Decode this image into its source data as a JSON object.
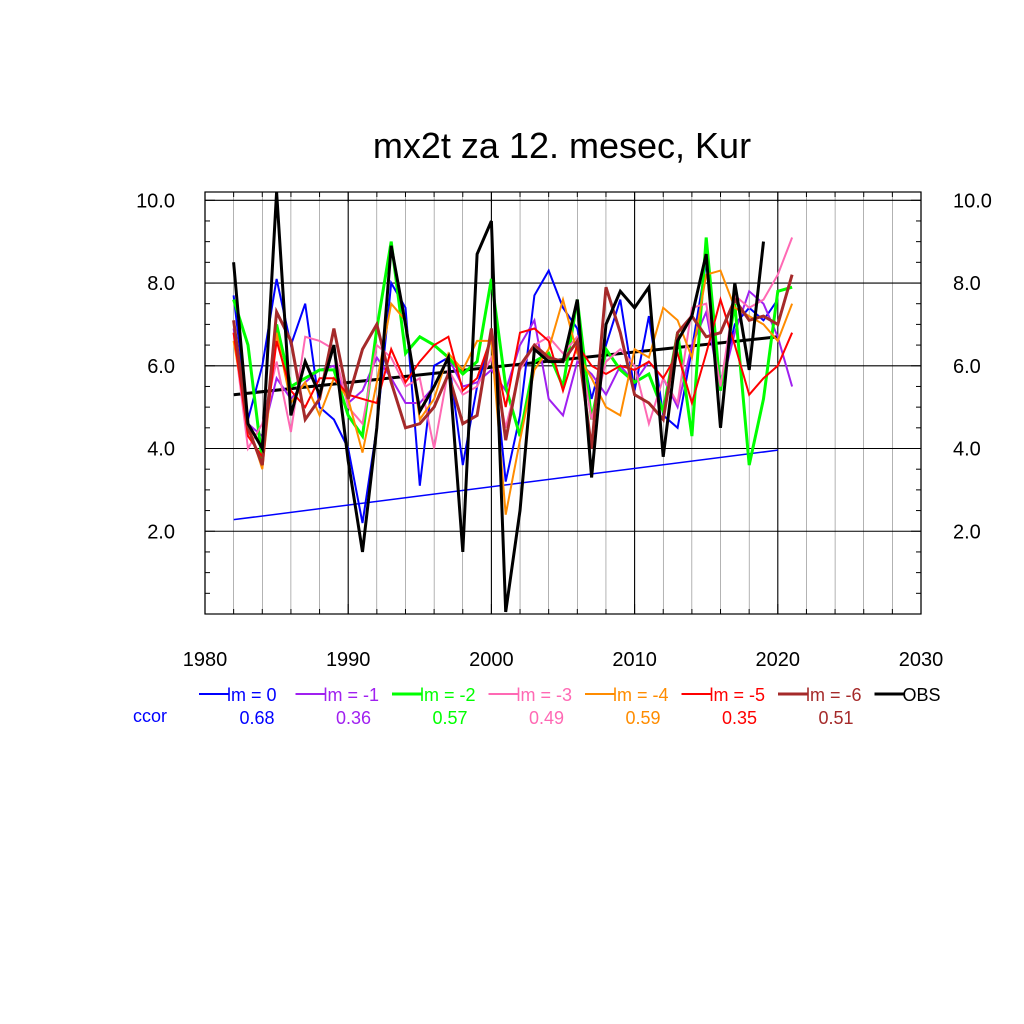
{
  "chart_data": {
    "type": "line",
    "title": "mx2t za 12. mesec, Kur",
    "xlabel": "",
    "ylabel": "",
    "xlim": [
      1980,
      2030
    ],
    "ylim": [
      0,
      10.2
    ],
    "x_ticks": [
      1980,
      1990,
      2000,
      2010,
      2020,
      2030
    ],
    "x_tick_labels": [
      "1980",
      "1990",
      "2000",
      "2010",
      "2020",
      "2030"
    ],
    "y_ticks": [
      2,
      4,
      6,
      8,
      10
    ],
    "y_tick_labels": [
      "2.0",
      "4.0",
      "6.0",
      "8.0",
      "10.0"
    ],
    "grid": true,
    "ccor_label": "ccor",
    "ccor_color": "#0000ff",
    "series": [
      {
        "name": "lm = 0",
        "color": "#0000ff",
        "width": 2,
        "ccor": "0.68",
        "x": [
          1982,
          1983,
          1984,
          1985,
          1986,
          1987,
          1988,
          1989,
          1990,
          1991,
          1992,
          1993,
          1994,
          1995,
          1996,
          1997,
          1998,
          1999,
          2000,
          2001,
          2002,
          2003,
          2004,
          2005,
          2006,
          2007,
          2008,
          2009,
          2010,
          2011,
          2012,
          2013,
          2014,
          2015,
          2016,
          2017,
          2018,
          2019,
          2020
        ],
        "y": [
          7.7,
          4.7,
          6.0,
          8.1,
          6.5,
          7.5,
          5.0,
          4.7,
          4.0,
          2.2,
          4.5,
          8.0,
          7.4,
          3.1,
          6.0,
          6.2,
          3.6,
          5.5,
          6.7,
          3.2,
          4.8,
          7.7,
          8.3,
          7.4,
          6.9,
          5.2,
          6.5,
          7.6,
          5.4,
          7.2,
          4.8,
          4.5,
          6.4,
          8.5,
          5.6,
          7.0,
          7.4,
          7.1,
          7.6
        ]
      },
      {
        "name": "lm = -1",
        "color": "#a020f0",
        "width": 2,
        "ccor": "0.36",
        "x": [
          1982,
          1983,
          1984,
          1985,
          1986,
          1987,
          1988,
          1989,
          1990,
          1991,
          1992,
          1993,
          1994,
          1995,
          1996,
          1997,
          1998,
          1999,
          2000,
          2001,
          2002,
          2003,
          2004,
          2005,
          2006,
          2007,
          2008,
          2009,
          2010,
          2011,
          2012,
          2013,
          2014,
          2015,
          2016,
          2017,
          2018,
          2019,
          2020,
          2021
        ],
        "y": [
          6.9,
          4.6,
          4.3,
          5.7,
          5.2,
          5.6,
          5.9,
          6.0,
          5.1,
          5.4,
          6.2,
          5.7,
          5.1,
          5.1,
          5.5,
          6.2,
          5.5,
          5.6,
          5.9,
          5.4,
          6.5,
          7.1,
          5.2,
          4.8,
          6.1,
          5.8,
          5.3,
          6.0,
          5.6,
          6.1,
          5.7,
          5.0,
          6.5,
          7.3,
          5.4,
          6.8,
          7.8,
          7.5,
          6.7,
          5.5
        ]
      },
      {
        "name": "lm = -2",
        "color": "#00ff00",
        "width": 3,
        "ccor": "0.57",
        "x": [
          1982,
          1983,
          1984,
          1985,
          1986,
          1987,
          1988,
          1989,
          1990,
          1991,
          1992,
          1993,
          1994,
          1995,
          1996,
          1997,
          1998,
          1999,
          2000,
          2001,
          2002,
          2003,
          2004,
          2005,
          2006,
          2007,
          2008,
          2009,
          2010,
          2011,
          2012,
          2013,
          2014,
          2015,
          2016,
          2017,
          2018,
          2019,
          2020,
          2021
        ],
        "y": [
          7.6,
          6.5,
          3.7,
          7.0,
          5.5,
          5.7,
          5.9,
          5.9,
          4.8,
          4.3,
          6.9,
          9.0,
          6.3,
          6.7,
          6.5,
          6.2,
          5.8,
          6.1,
          8.1,
          5.5,
          4.3,
          6.1,
          6.3,
          5.5,
          7.6,
          4.7,
          6.4,
          5.9,
          5.6,
          5.8,
          4.9,
          6.8,
          4.3,
          9.1,
          5.4,
          7.5,
          3.6,
          5.2,
          7.8,
          7.9
        ]
      },
      {
        "name": "lm = -3",
        "color": "#ff69b4",
        "width": 2,
        "ccor": "0.49",
        "x": [
          1982,
          1983,
          1984,
          1985,
          1986,
          1987,
          1988,
          1989,
          1990,
          1991,
          1992,
          1993,
          1994,
          1995,
          1996,
          1997,
          1998,
          1999,
          2000,
          2001,
          2002,
          2003,
          2004,
          2005,
          2006,
          2007,
          2008,
          2009,
          2010,
          2011,
          2012,
          2013,
          2014,
          2015,
          2016,
          2017,
          2018,
          2019,
          2020,
          2021
        ],
        "y": [
          6.8,
          4.0,
          4.6,
          6.1,
          4.4,
          6.7,
          6.6,
          6.4,
          5.0,
          4.6,
          6.5,
          6.2,
          5.5,
          5.7,
          4.0,
          5.9,
          5.3,
          5.5,
          6.2,
          4.5,
          5.9,
          6.5,
          6.7,
          6.3,
          6.7,
          4.7,
          6.1,
          6.4,
          6.0,
          4.6,
          5.7,
          5.1,
          7.4,
          7.5,
          5.5,
          7.7,
          7.4,
          7.6,
          8.2,
          9.1
        ]
      },
      {
        "name": "lm = -4",
        "color": "#ff8c00",
        "width": 2,
        "ccor": "0.59",
        "x": [
          1982,
          1983,
          1984,
          1985,
          1986,
          1987,
          1988,
          1989,
          1990,
          1991,
          1992,
          1993,
          1994,
          1995,
          1996,
          1997,
          1998,
          1999,
          2000,
          2001,
          2002,
          2003,
          2004,
          2005,
          2006,
          2007,
          2008,
          2009,
          2010,
          2011,
          2012,
          2013,
          2014,
          2015,
          2016,
          2017,
          2018,
          2019,
          2020,
          2021
        ],
        "y": [
          6.6,
          4.6,
          3.5,
          6.8,
          5.1,
          5.6,
          4.8,
          5.7,
          5.2,
          3.9,
          5.6,
          7.5,
          7.1,
          4.7,
          5.2,
          6.3,
          5.9,
          6.6,
          6.6,
          2.4,
          4.2,
          5.9,
          6.4,
          7.6,
          6.3,
          5.7,
          5.0,
          4.8,
          6.4,
          6.2,
          7.4,
          7.1,
          6.2,
          8.2,
          8.3,
          7.4,
          7.2,
          7.0,
          6.6,
          7.5
        ]
      },
      {
        "name": "lm = -5",
        "color": "#ff0000",
        "width": 2,
        "ccor": "0.35",
        "x": [
          1982,
          1983,
          1984,
          1985,
          1986,
          1987,
          1988,
          1989,
          1990,
          1991,
          1992,
          1993,
          1994,
          1995,
          1996,
          1997,
          1998,
          1999,
          2000,
          2001,
          2002,
          2003,
          2004,
          2005,
          2006,
          2007,
          2008,
          2009,
          2010,
          2011,
          2012,
          2013,
          2014,
          2015,
          2016,
          2017,
          2018,
          2019,
          2020,
          2021
        ],
        "y": [
          6.8,
          4.3,
          3.8,
          6.6,
          5.4,
          5.0,
          5.7,
          5.7,
          5.3,
          5.2,
          5.1,
          6.4,
          5.6,
          6.1,
          6.5,
          6.7,
          5.4,
          5.7,
          6.7,
          5.0,
          6.8,
          6.9,
          6.6,
          5.4,
          6.5,
          6.0,
          5.8,
          6.0,
          5.9,
          6.1,
          5.7,
          6.3,
          5.1,
          6.3,
          7.6,
          6.5,
          5.3,
          5.7,
          6.0,
          6.8
        ]
      },
      {
        "name": "lm = -6",
        "color": "#a52a2a",
        "width": 3,
        "ccor": "0.51",
        "x": [
          1982,
          1983,
          1984,
          1985,
          1986,
          1987,
          1988,
          1989,
          1990,
          1991,
          1992,
          1993,
          1994,
          1995,
          1996,
          1997,
          1998,
          1999,
          2000,
          2001,
          2002,
          2003,
          2004,
          2005,
          2006,
          2007,
          2008,
          2009,
          2010,
          2011,
          2012,
          2013,
          2014,
          2015,
          2016,
          2017,
          2018,
          2019,
          2020,
          2021
        ],
        "y": [
          7.1,
          4.5,
          3.6,
          7.3,
          6.6,
          4.7,
          5.2,
          6.9,
          5.2,
          6.4,
          7.0,
          5.6,
          4.5,
          4.6,
          5.0,
          5.8,
          4.6,
          4.8,
          6.9,
          4.2,
          6.0,
          6.5,
          6.2,
          6.1,
          6.6,
          4.0,
          7.9,
          6.8,
          5.3,
          5.1,
          4.7,
          6.8,
          7.2,
          6.7,
          6.8,
          7.6,
          7.1,
          7.2,
          7.0,
          8.2
        ]
      },
      {
        "name": "OBS",
        "color": "#000000",
        "width": 3,
        "ccor": "",
        "x": [
          1982,
          1983,
          1984,
          1985,
          1986,
          1987,
          1988,
          1989,
          1990,
          1991,
          1992,
          1993,
          1994,
          1995,
          1996,
          1997,
          1998,
          1999,
          2000,
          2001,
          2002,
          2003,
          2004,
          2005,
          2006,
          2007,
          2008,
          2009,
          2010,
          2011,
          2012,
          2013,
          2014,
          2015,
          2016,
          2017,
          2018,
          2019
        ],
        "y": [
          8.5,
          4.6,
          4.0,
          10.2,
          4.8,
          6.1,
          5.3,
          6.5,
          3.7,
          1.5,
          4.5,
          8.9,
          7.0,
          4.9,
          5.5,
          6.2,
          1.5,
          8.7,
          9.5,
          0.05,
          2.5,
          6.4,
          6.1,
          6.1,
          7.6,
          3.3,
          7.0,
          7.8,
          7.4,
          7.9,
          3.8,
          6.6,
          7.2,
          8.7,
          4.5,
          8.0,
          5.9,
          9.0
        ]
      }
    ],
    "trend_lines": [
      {
        "color": "#000000",
        "width": 3,
        "x": [
          1982,
          2020
        ],
        "y": [
          5.3,
          6.7
        ]
      },
      {
        "color": "#0000ff",
        "width": 1.5,
        "x": [
          1982,
          2020
        ],
        "y": [
          2.28,
          3.96
        ]
      }
    ]
  }
}
